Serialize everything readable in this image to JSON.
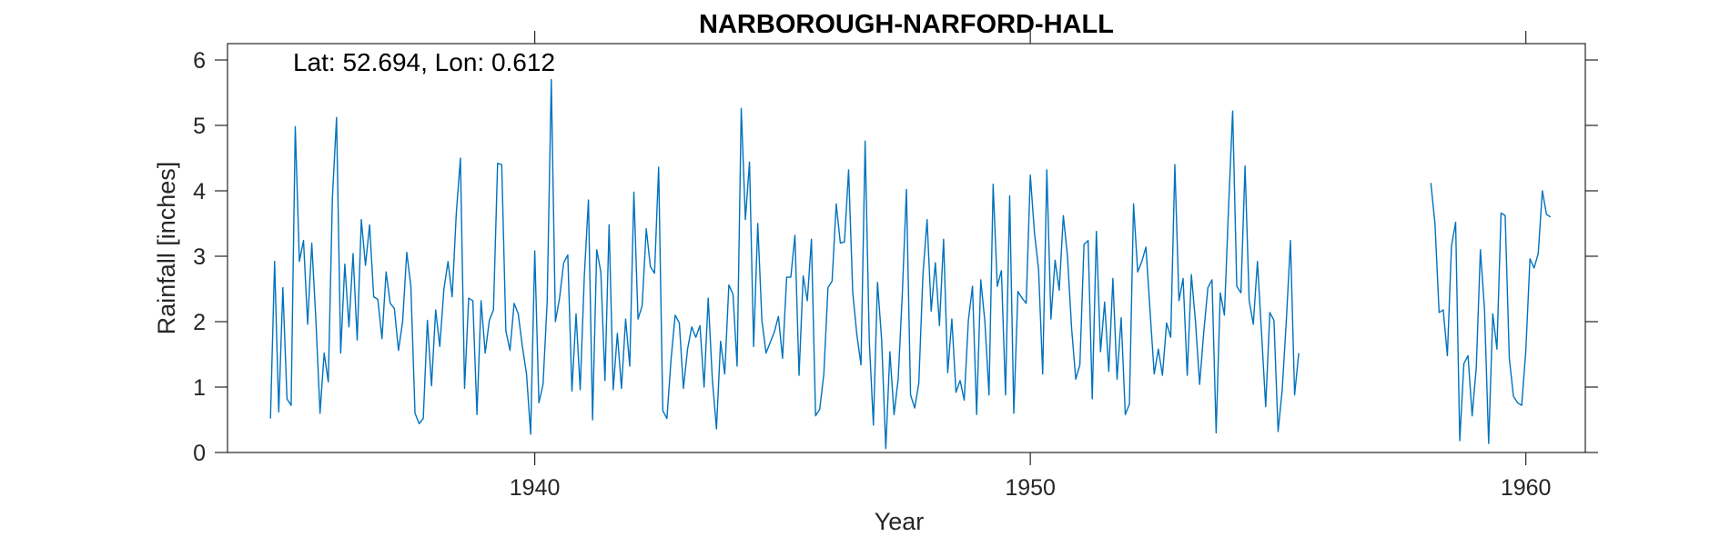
{
  "chart_data": {
    "type": "line",
    "title": "NARBOROUGH-NARFORD-HALL",
    "annotation": "Lat: 52.694, Lon: 0.612",
    "xlabel": "Year",
    "ylabel": "Rainfall [inches]",
    "xlim": [
      1933.8,
      1961.2
    ],
    "ylim": [
      0,
      6.25
    ],
    "xticks": [
      1940,
      1950,
      1960
    ],
    "yticks": [
      0,
      1,
      2,
      3,
      4,
      5,
      6
    ],
    "grid": false,
    "line_color": "#0072BD",
    "series": [
      {
        "x_start": 1934.667,
        "x_step": 0.083333,
        "values": [
          0.52,
          2.92,
          0.62,
          2.52,
          0.82,
          0.72,
          4.98,
          2.92,
          3.24,
          1.96,
          3.2,
          2.02,
          0.6,
          1.52,
          1.08,
          3.9,
          5.12,
          1.52,
          2.88,
          1.92,
          3.04,
          1.72,
          3.56,
          2.86,
          3.48,
          2.38,
          2.34,
          1.74,
          2.76,
          2.28,
          2.2,
          1.56,
          2.0,
          3.06,
          2.54,
          0.6,
          0.44,
          0.52,
          2.02,
          1.02,
          2.18,
          1.62,
          2.5,
          2.92,
          2.38,
          3.66,
          4.5,
          0.98,
          2.36,
          2.32,
          0.58,
          2.32,
          1.52,
          2.02,
          2.18,
          4.42,
          4.4,
          1.86,
          1.56,
          2.28,
          2.12,
          1.62,
          1.2,
          0.28,
          3.08,
          0.76,
          1.04,
          2.3,
          5.7,
          2.0,
          2.36,
          2.9,
          3.02,
          0.94,
          2.12,
          0.96,
          2.7,
          3.86,
          0.5,
          3.1,
          2.76,
          1.1,
          3.48,
          0.96,
          1.82,
          0.98,
          2.04,
          1.32,
          3.98,
          2.04,
          2.24,
          3.42,
          2.84,
          2.74,
          4.36,
          0.64,
          0.52,
          1.42,
          2.1,
          1.98,
          0.98,
          1.58,
          1.92,
          1.76,
          1.94,
          1.0,
          2.36,
          1.12,
          0.36,
          1.7,
          1.2,
          2.56,
          2.42,
          1.32,
          5.26,
          3.56,
          4.44,
          1.62,
          3.5,
          2.02,
          1.52,
          1.68,
          1.84,
          2.08,
          1.44,
          2.68,
          2.68,
          3.32,
          1.18,
          2.7,
          2.32,
          3.26,
          0.56,
          0.66,
          1.2,
          2.52,
          2.62,
          3.8,
          3.2,
          3.22,
          4.32,
          2.44,
          1.8,
          1.34,
          4.76,
          1.72,
          0.42,
          2.6,
          1.72,
          0.06,
          1.54,
          0.58,
          1.12,
          2.42,
          4.02,
          0.88,
          0.68,
          1.06,
          2.72,
          3.56,
          2.16,
          2.9,
          1.94,
          3.26,
          1.22,
          2.04,
          0.92,
          1.1,
          0.8,
          2.02,
          2.54,
          0.58,
          2.64,
          2.0,
          0.88,
          4.1,
          2.54,
          2.78,
          0.88,
          3.92,
          0.6,
          2.46,
          2.36,
          2.28,
          4.24,
          3.36,
          2.8,
          1.2,
          4.32,
          2.04,
          2.94,
          2.48,
          3.62,
          3.0,
          1.9,
          1.12,
          1.34,
          3.18,
          3.24,
          0.82,
          3.38,
          1.54,
          2.3,
          1.24,
          2.66,
          1.12,
          2.06,
          0.58,
          0.74,
          3.8,
          2.76,
          2.92,
          3.14,
          2.16,
          1.2,
          1.58,
          1.18,
          1.98,
          1.76,
          4.4,
          2.32,
          2.66,
          1.18,
          2.72,
          2.0,
          1.04,
          1.84,
          2.52,
          2.64,
          0.3,
          2.44,
          2.1,
          3.74,
          5.22,
          2.54,
          2.44,
          4.38,
          2.32,
          1.96,
          2.92,
          1.82,
          0.7,
          2.14,
          2.02,
          0.32,
          0.96,
          2.02,
          3.24,
          0.88,
          1.52
        ]
      },
      {
        "x_start": 1958.083,
        "x_step": 0.083333,
        "values": [
          4.12,
          3.5,
          2.14,
          2.18,
          1.48,
          3.16,
          3.52,
          0.18,
          1.36,
          1.48,
          0.56,
          1.3,
          3.1,
          2.18,
          0.14,
          2.12,
          1.58,
          3.66,
          3.62,
          1.44,
          0.86,
          0.76,
          0.72,
          1.56,
          2.96,
          2.82,
          3.04,
          4.0,
          3.64,
          3.6
        ]
      }
    ]
  }
}
